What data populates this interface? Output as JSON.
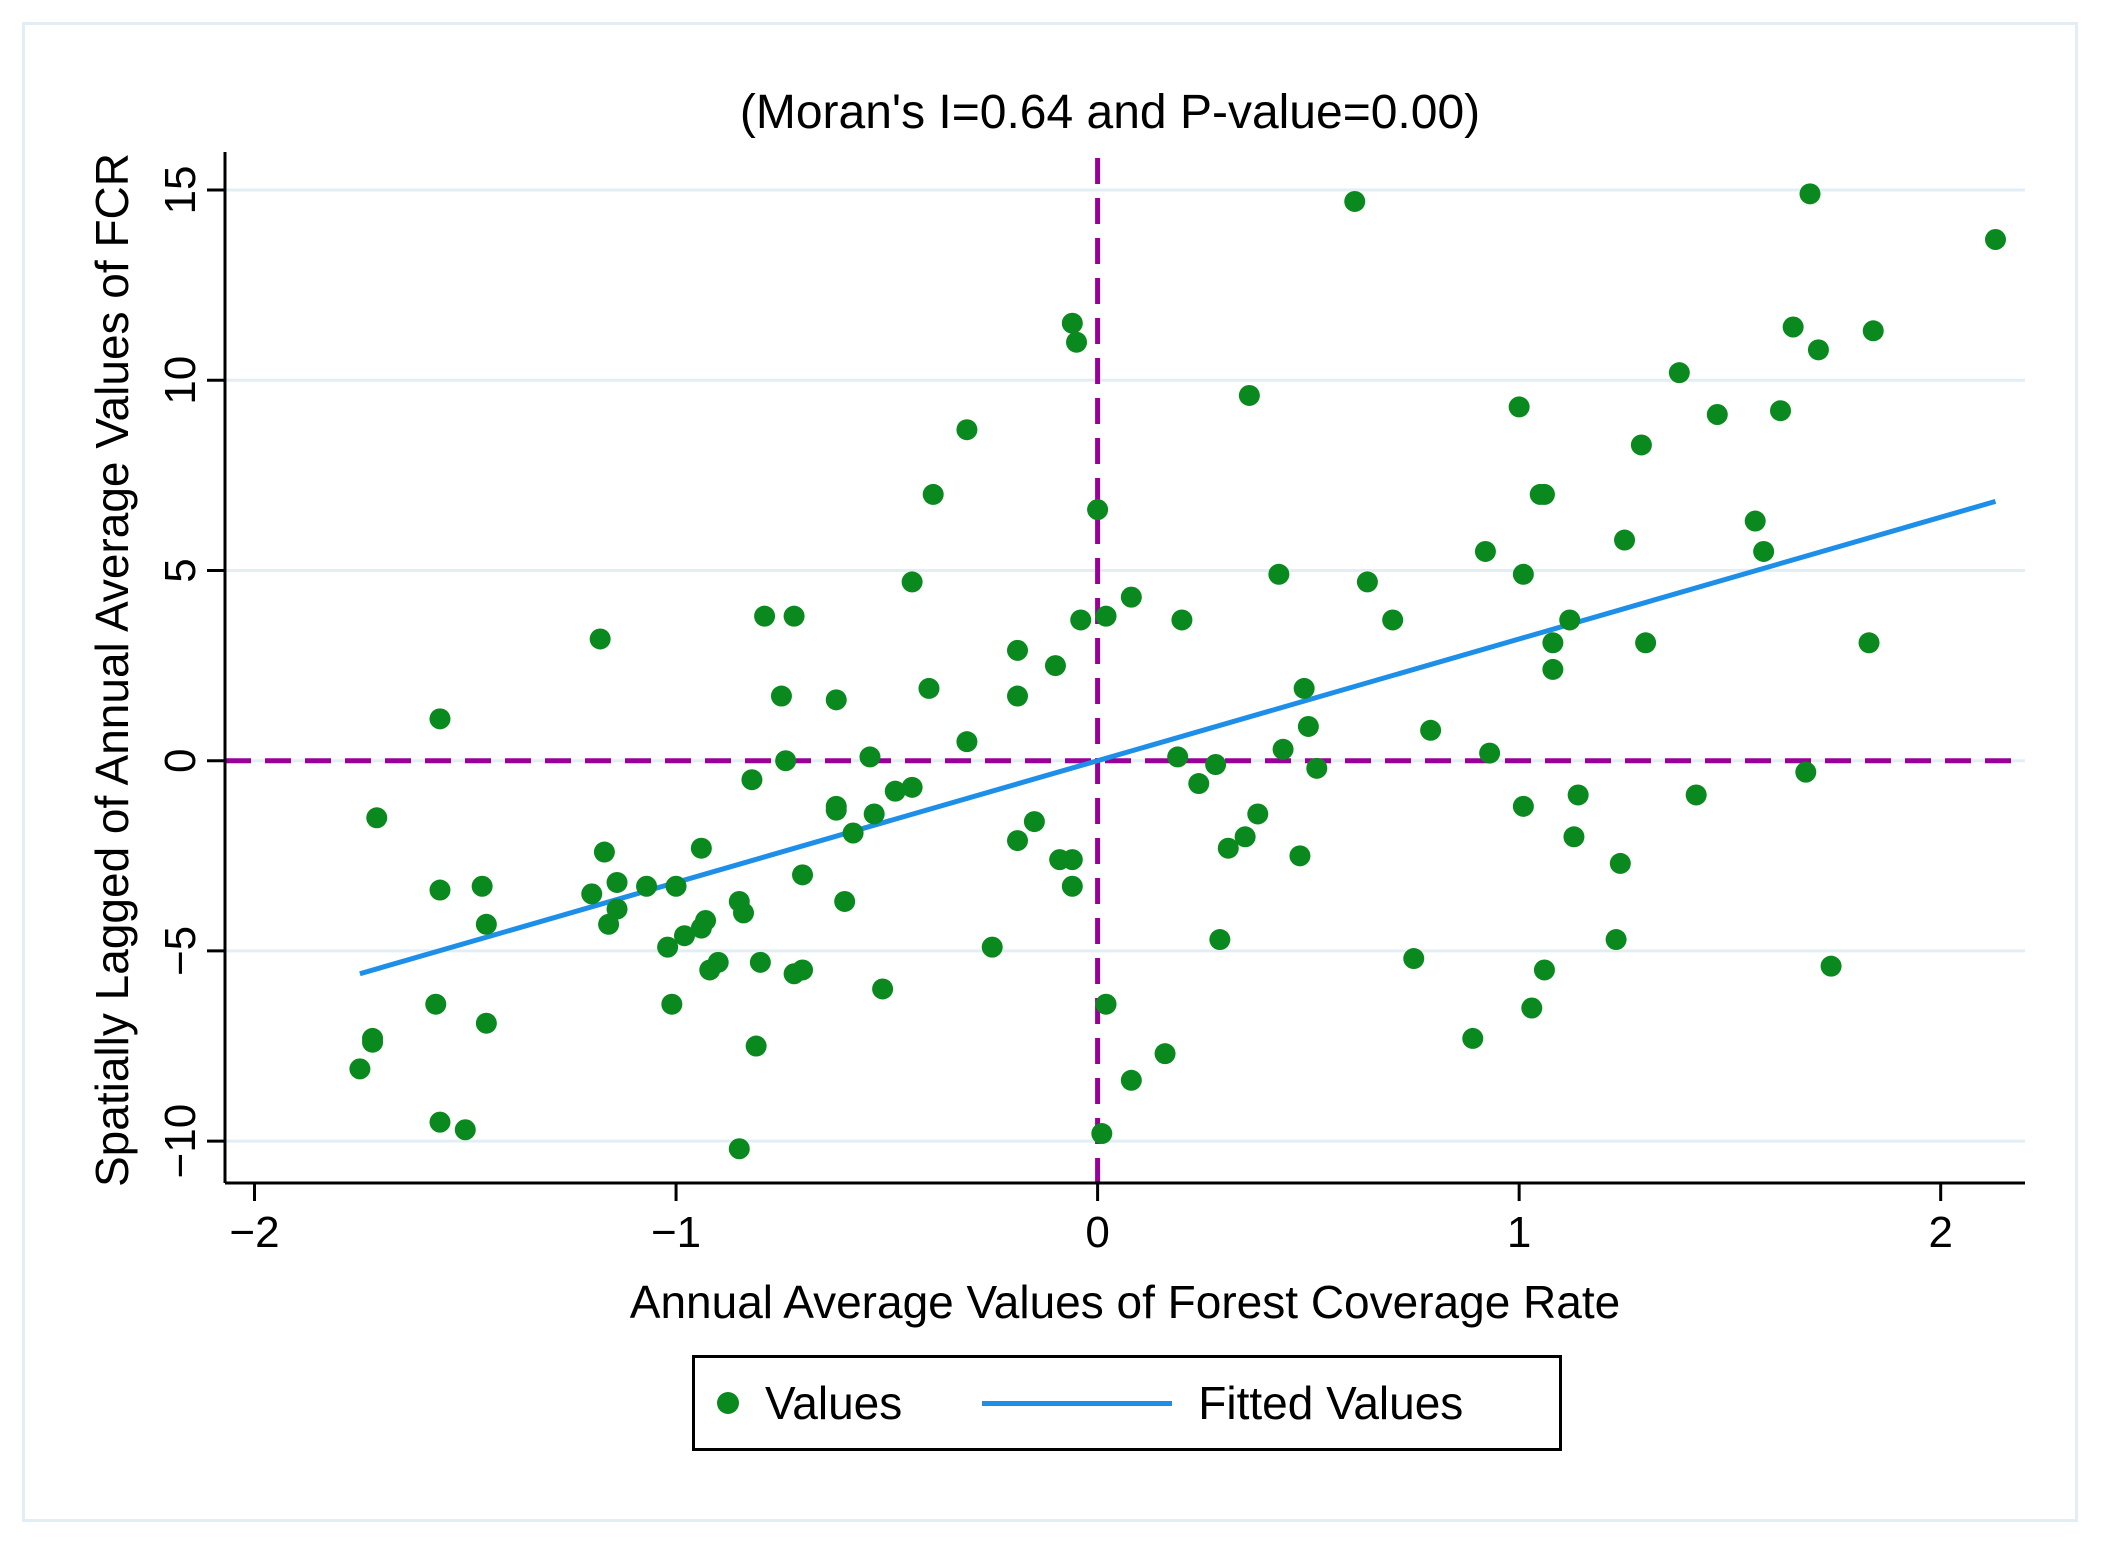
{
  "chart_data": {
    "type": "scatter",
    "title": "(Moran's I=0.64 and P-value=0.00)",
    "xlabel": "Annual Average Values of Forest Coverage Rate",
    "ylabel": "Spatially Lagged of Annual Average Values of FCR",
    "xlim": [
      -2.07,
      2.2
    ],
    "ylim": [
      -11.1,
      16.0
    ],
    "xticks": [
      -2,
      -1,
      0,
      1,
      2
    ],
    "xtick_labels": [
      "−2",
      "−1",
      "0",
      "1",
      "2"
    ],
    "yticks": [
      -10,
      -5,
      0,
      5,
      10,
      15
    ],
    "ytick_labels": [
      "−10",
      "−5",
      "0",
      "5",
      "10",
      "15"
    ],
    "grid": "horizontal",
    "reference_lines": {
      "x": 0,
      "y": 0,
      "color": "#990099",
      "style": "dashed"
    },
    "colors": {
      "points": "#0a8a1e",
      "fit": "#1e8fe8",
      "grid": "#e3eef4"
    },
    "legend": {
      "position": "bottom",
      "items": [
        "Values",
        "Fitted Values"
      ]
    },
    "fitted_line": {
      "name": "Fitted Values",
      "slope": 3.2,
      "intercept": 0.0,
      "x_range": [
        -1.75,
        2.13
      ]
    },
    "series": [
      {
        "name": "Values",
        "points": [
          [
            0.61,
            14.7
          ],
          [
            1.69,
            14.9
          ],
          [
            2.13,
            13.7
          ],
          [
            -0.06,
            11.5
          ],
          [
            -0.05,
            11.0
          ],
          [
            1.65,
            11.4
          ],
          [
            1.84,
            11.3
          ],
          [
            1.71,
            10.8
          ],
          [
            1.38,
            10.2
          ],
          [
            0.36,
            9.6
          ],
          [
            1.0,
            9.3
          ],
          [
            1.47,
            9.1
          ],
          [
            1.62,
            9.2
          ],
          [
            -0.31,
            8.7
          ],
          [
            1.29,
            8.3
          ],
          [
            -0.39,
            7.0
          ],
          [
            1.06,
            7.0
          ],
          [
            1.05,
            7.0
          ],
          [
            0.0,
            6.6
          ],
          [
            1.56,
            6.3
          ],
          [
            0.92,
            5.5
          ],
          [
            1.58,
            5.5
          ],
          [
            1.25,
            5.8
          ],
          [
            0.43,
            4.9
          ],
          [
            1.01,
            4.9
          ],
          [
            0.64,
            4.7
          ],
          [
            -0.44,
            4.7
          ],
          [
            0.08,
            4.3
          ],
          [
            -0.79,
            3.8
          ],
          [
            -0.72,
            3.8
          ],
          [
            -0.04,
            3.7
          ],
          [
            0.02,
            3.8
          ],
          [
            0.2,
            3.7
          ],
          [
            0.7,
            3.7
          ],
          [
            1.12,
            3.7
          ],
          [
            -1.18,
            3.2
          ],
          [
            1.08,
            3.1
          ],
          [
            1.3,
            3.1
          ],
          [
            1.83,
            3.1
          ],
          [
            -0.19,
            2.9
          ],
          [
            -0.1,
            2.5
          ],
          [
            1.08,
            2.4
          ],
          [
            -0.4,
            1.9
          ],
          [
            0.49,
            1.9
          ],
          [
            -0.75,
            1.7
          ],
          [
            -0.19,
            1.7
          ],
          [
            -0.62,
            1.6
          ],
          [
            -1.56,
            1.1
          ],
          [
            0.5,
            0.9
          ],
          [
            0.79,
            0.8
          ],
          [
            -0.31,
            0.5
          ],
          [
            0.44,
            0.3
          ],
          [
            0.93,
            0.2
          ],
          [
            -0.54,
            0.1
          ],
          [
            0.19,
            0.1
          ],
          [
            0.28,
            -0.1
          ],
          [
            -0.74,
            0.0
          ],
          [
            0.52,
            -0.2
          ],
          [
            1.68,
            -0.3
          ],
          [
            -0.82,
            -0.5
          ],
          [
            0.24,
            -0.6
          ],
          [
            -0.48,
            -0.8
          ],
          [
            -0.44,
            -0.7
          ],
          [
            -0.62,
            -1.2
          ],
          [
            -0.62,
            -1.3
          ],
          [
            -0.53,
            -1.4
          ],
          [
            0.38,
            -1.4
          ],
          [
            -1.71,
            -1.5
          ],
          [
            1.01,
            -1.2
          ],
          [
            1.14,
            -0.9
          ],
          [
            1.42,
            -0.9
          ],
          [
            -0.15,
            -1.6
          ],
          [
            -0.58,
            -1.9
          ],
          [
            0.35,
            -2.0
          ],
          [
            1.13,
            -2.0
          ],
          [
            -0.19,
            -2.1
          ],
          [
            0.31,
            -2.3
          ],
          [
            -0.94,
            -2.3
          ],
          [
            -1.17,
            -2.4
          ],
          [
            0.48,
            -2.5
          ],
          [
            -0.06,
            -2.6
          ],
          [
            -0.09,
            -2.6
          ],
          [
            1.24,
            -2.7
          ],
          [
            -0.7,
            -3.0
          ],
          [
            -1.14,
            -3.2
          ],
          [
            -1.07,
            -3.3
          ],
          [
            -1.0,
            -3.3
          ],
          [
            -1.46,
            -3.3
          ],
          [
            -1.56,
            -3.4
          ],
          [
            -0.06,
            -3.3
          ],
          [
            -1.2,
            -3.5
          ],
          [
            -0.6,
            -3.7
          ],
          [
            -0.85,
            -3.7
          ],
          [
            -1.14,
            -3.9
          ],
          [
            -0.84,
            -4.0
          ],
          [
            -0.93,
            -4.2
          ],
          [
            -0.94,
            -4.4
          ],
          [
            -1.16,
            -4.3
          ],
          [
            -1.45,
            -4.3
          ],
          [
            -0.98,
            -4.6
          ],
          [
            -1.02,
            -4.9
          ],
          [
            0.29,
            -4.7
          ],
          [
            -0.25,
            -4.9
          ],
          [
            1.23,
            -4.7
          ],
          [
            -0.8,
            -5.3
          ],
          [
            -0.9,
            -5.3
          ],
          [
            -0.92,
            -5.5
          ],
          [
            -0.7,
            -5.5
          ],
          [
            -0.72,
            -5.6
          ],
          [
            0.75,
            -5.2
          ],
          [
            1.06,
            -5.5
          ],
          [
            1.74,
            -5.4
          ],
          [
            -0.51,
            -6.0
          ],
          [
            -1.01,
            -6.4
          ],
          [
            0.02,
            -6.4
          ],
          [
            1.03,
            -6.5
          ],
          [
            -1.57,
            -6.4
          ],
          [
            -1.45,
            -6.9
          ],
          [
            -1.72,
            -7.3
          ],
          [
            -1.72,
            -7.4
          ],
          [
            0.89,
            -7.3
          ],
          [
            -0.81,
            -7.5
          ],
          [
            0.16,
            -7.7
          ],
          [
            -1.75,
            -8.1
          ],
          [
            0.08,
            -8.4
          ],
          [
            -1.56,
            -9.5
          ],
          [
            -1.5,
            -9.7
          ],
          [
            0.01,
            -9.8
          ],
          [
            -0.85,
            -10.2
          ]
        ]
      }
    ]
  }
}
